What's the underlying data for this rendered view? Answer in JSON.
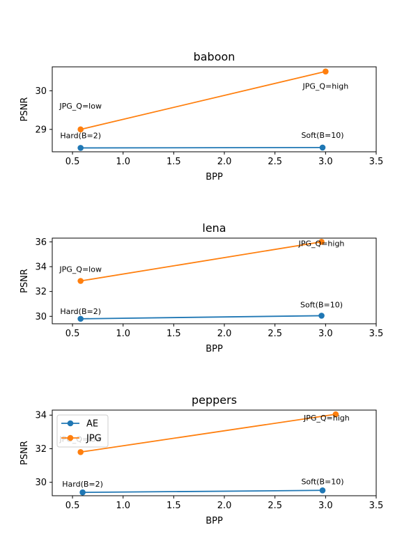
{
  "colors": {
    "AE": "#1f77b4",
    "JPG": "#ff7f0e"
  },
  "chart_data": [
    {
      "type": "line",
      "title": "baboon",
      "xlabel": "BPP",
      "ylabel": "PSNR",
      "xlim": [
        0.3,
        3.5
      ],
      "ylim": [
        28.42,
        30.62
      ],
      "xticks": [
        0.5,
        1.0,
        1.5,
        2.0,
        2.5,
        3.0,
        3.5
      ],
      "xtick_labels": [
        "0.5",
        "1.0",
        "1.5",
        "2.0",
        "2.5",
        "3.0",
        "3.5"
      ],
      "yticks": [
        29,
        30
      ],
      "ytick_labels": [
        "29",
        "30"
      ],
      "legend": null,
      "series": [
        {
          "name": "AE",
          "x": [
            0.58,
            2.97
          ],
          "y": [
            28.52,
            28.53
          ]
        },
        {
          "name": "JPG",
          "x": [
            0.58,
            3.0
          ],
          "y": [
            29.0,
            30.5
          ]
        }
      ],
      "annotations": [
        {
          "text": "Hard(B=2)",
          "x": 0.58,
          "y": 28.52,
          "dx": 0,
          "dy": -14
        },
        {
          "text": "Soft(B=10)",
          "x": 2.97,
          "y": 28.53,
          "dx": 0,
          "dy": -14
        },
        {
          "text": "JPG_Q=low",
          "x": 0.58,
          "y": 29.0,
          "dx": 0,
          "dy": -30
        },
        {
          "text": "JPG_Q=high",
          "x": 3.0,
          "y": 30.5,
          "dx": 0,
          "dy": 25
        }
      ]
    },
    {
      "type": "line",
      "title": "lena",
      "xlabel": "BPP",
      "ylabel": "PSNR",
      "xlim": [
        0.3,
        3.5
      ],
      "ylim": [
        29.4,
        36.3
      ],
      "xticks": [
        0.5,
        1.0,
        1.5,
        2.0,
        2.5,
        3.0,
        3.5
      ],
      "xtick_labels": [
        "0.5",
        "1.0",
        "1.5",
        "2.0",
        "2.5",
        "3.0",
        "3.5"
      ],
      "yticks": [
        30,
        32,
        34,
        36
      ],
      "ytick_labels": [
        "30",
        "32",
        "34",
        "36"
      ],
      "legend": null,
      "series": [
        {
          "name": "AE",
          "x": [
            0.58,
            2.96
          ],
          "y": [
            29.8,
            30.05
          ]
        },
        {
          "name": "JPG",
          "x": [
            0.58,
            2.96
          ],
          "y": [
            32.85,
            36.0
          ]
        }
      ],
      "annotations": [
        {
          "text": "Hard(B=2)",
          "x": 0.58,
          "y": 29.8,
          "dx": 0,
          "dy": -7
        },
        {
          "text": "Soft(B=10)",
          "x": 2.96,
          "y": 30.05,
          "dx": 0,
          "dy": -12
        },
        {
          "text": "JPG_Q=low",
          "x": 0.58,
          "y": 32.85,
          "dx": 0,
          "dy": -13
        },
        {
          "text": "JPG_Q=high",
          "x": 2.96,
          "y": 36.0,
          "dx": 0,
          "dy": 6
        }
      ]
    },
    {
      "type": "line",
      "title": "peppers",
      "xlabel": "BPP",
      "ylabel": "PSNR",
      "xlim": [
        0.3,
        3.5
      ],
      "ylim": [
        29.2,
        34.3
      ],
      "xticks": [
        0.5,
        1.0,
        1.5,
        2.0,
        2.5,
        3.0,
        3.5
      ],
      "xtick_labels": [
        "0.5",
        "1.0",
        "1.5",
        "2.0",
        "2.5",
        "3.0",
        "3.5"
      ],
      "yticks": [
        30,
        32,
        34
      ],
      "ytick_labels": [
        "30",
        "32",
        "34"
      ],
      "legend": "upper-left",
      "legend_entries": [
        "AE",
        "JPG"
      ],
      "series": [
        {
          "name": "AE",
          "x": [
            0.6,
            2.97
          ],
          "y": [
            29.4,
            29.52
          ]
        },
        {
          "name": "JPG",
          "x": [
            0.58,
            3.1
          ],
          "y": [
            31.8,
            34.05
          ]
        }
      ],
      "annotations": [
        {
          "text": "Hard(B=2)",
          "x": 0.6,
          "y": 29.4,
          "dx": 0,
          "dy": -8
        },
        {
          "text": "Soft(B=10)",
          "x": 2.97,
          "y": 29.52,
          "dx": 0,
          "dy": -9
        },
        {
          "text": "JPG_Q=low",
          "x": 0.58,
          "y": 31.8,
          "dx": 0,
          "dy": -15
        },
        {
          "text": "JPG_Q=high",
          "x": 3.1,
          "y": 34.05,
          "dx": -13,
          "dy": 9
        }
      ]
    }
  ]
}
